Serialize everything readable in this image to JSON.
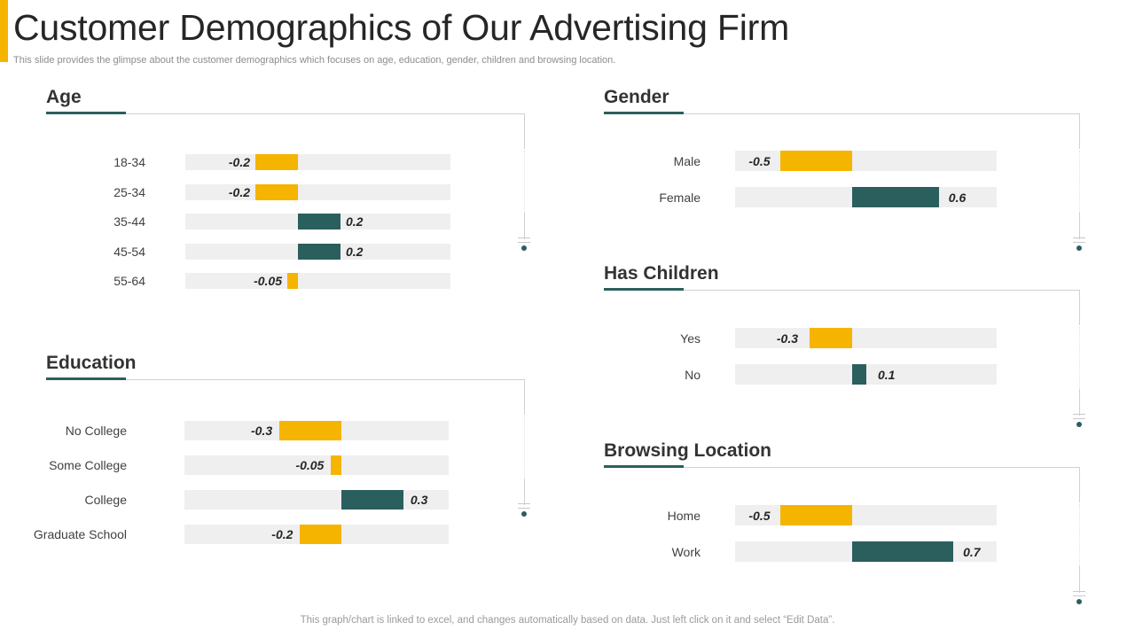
{
  "header": {
    "title": "Customer Demographics of Our Advertising Firm",
    "subtitle": "This slide provides the glimpse about the customer demographics which focuses on age, education, gender, children and browsing location."
  },
  "footer": "This graph/chart is linked to excel, and changes automatically based on data. Just left click on it and select “Edit Data”.",
  "colors": {
    "accent": "#F5B400",
    "positive": "#2B5F5E",
    "negative": "#F5B400",
    "track": "#EFEFEF"
  },
  "chart_data": [
    {
      "type": "bar",
      "title": "Age",
      "categories": [
        "18-34",
        "25-34",
        "35-44",
        "45-54",
        "55-64"
      ],
      "value_labels": [
        "-0.2",
        "-0.2",
        "0.2",
        "0.2",
        "-0.05"
      ],
      "values": [
        -0.2,
        -0.2,
        0.2,
        0.2,
        -0.05
      ]
    },
    {
      "type": "bar",
      "title": "Education",
      "categories": [
        "No College",
        "Some College",
        "College",
        "Graduate School"
      ],
      "value_labels": [
        "-0.3",
        "-0.05",
        "0.3",
        "-0.2"
      ],
      "values": [
        -0.3,
        -0.05,
        0.3,
        -0.2
      ]
    },
    {
      "type": "bar",
      "title": "Gender",
      "categories": [
        "Male",
        "Female"
      ],
      "value_labels": [
        "-0.5",
        "0.6"
      ],
      "values": [
        -0.5,
        0.6
      ]
    },
    {
      "type": "bar",
      "title": "Has Children",
      "categories": [
        "Yes",
        "No"
      ],
      "value_labels": [
        "-0.3",
        "0.1"
      ],
      "values": [
        -0.3,
        0.1
      ]
    },
    {
      "type": "bar",
      "title": "Browsing Location",
      "categories": [
        "Home",
        "Work"
      ],
      "value_labels": [
        "-0.5",
        "0.7"
      ],
      "values": [
        -0.5,
        0.7
      ]
    }
  ]
}
